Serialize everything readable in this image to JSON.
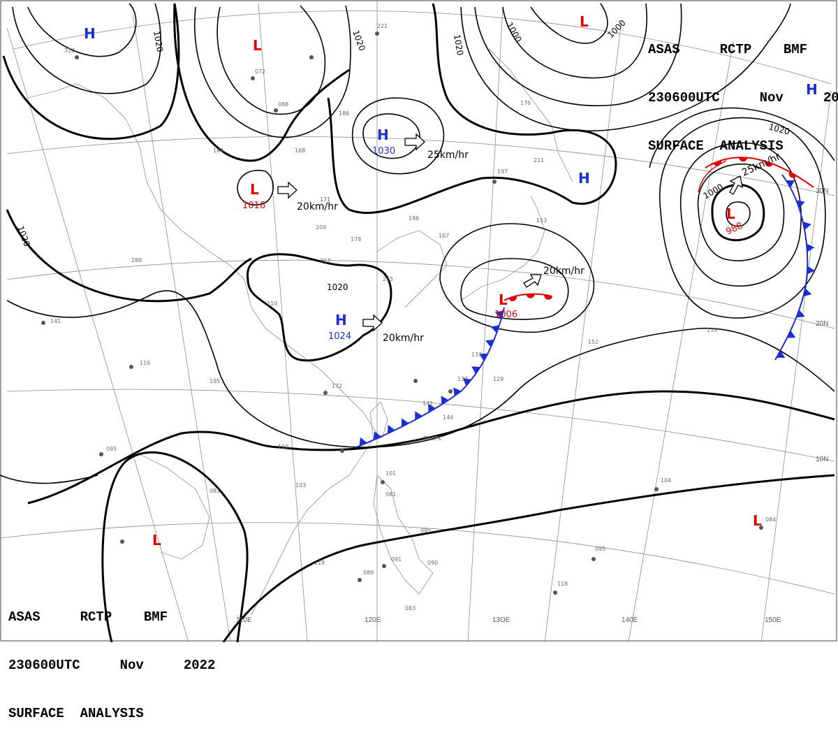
{
  "title": {
    "line1": "ASAS     RCTP    BMF",
    "line2": "230600UTC     Nov     2022",
    "line3": "SURFACE  ANALYSIS"
  },
  "colors": {
    "low": "#e00000",
    "high": "#1a2fd0",
    "cold_front": "#1a2fd0",
    "warm_front": "#e00000",
    "isobar": "#000000",
    "grid": "#8a8a8a"
  },
  "grid_labels": {
    "longitudes": [
      "110E",
      "120E",
      "13OE",
      "140E",
      "150E"
    ],
    "latitudes": [
      "30N",
      "20N",
      "10N"
    ]
  },
  "isobar_labels": [
    "1020",
    "1020",
    "1020",
    "1020",
    "1000",
    "1000",
    "1020",
    "1000",
    "1020"
  ],
  "pressure_centers": [
    {
      "type": "H",
      "value": ""
    },
    {
      "type": "L",
      "value": ""
    },
    {
      "type": "H",
      "value": "1030"
    },
    {
      "type": "L",
      "value": "1016"
    },
    {
      "type": "H",
      "value": "1024"
    },
    {
      "type": "L",
      "value": "1006"
    },
    {
      "type": "L",
      "value": ""
    },
    {
      "type": "H",
      "value": ""
    },
    {
      "type": "H",
      "value": ""
    },
    {
      "type": "L",
      "value": "988"
    },
    {
      "type": "L",
      "value": ""
    },
    {
      "type": "L",
      "value": ""
    }
  ],
  "motions": [
    {
      "text": "25km/hr"
    },
    {
      "text": "20km/hr"
    },
    {
      "text": "20km/hr"
    },
    {
      "text": "20km/hr"
    },
    {
      "text": "25km/hr"
    }
  ],
  "station_samples": [
    "314",
    "072",
    "088",
    "186",
    "221",
    "184",
    "168",
    "171",
    "209",
    "178",
    "186",
    "167",
    "197",
    "211",
    "153",
    "176",
    "288",
    "217",
    "265",
    "141",
    "116",
    "210",
    "195",
    "172",
    "133",
    "137",
    "129",
    "141",
    "144",
    "152",
    "139",
    "095",
    "081",
    "110",
    "103",
    "101",
    "081",
    "095",
    "091",
    "090",
    "118",
    "089",
    "083",
    "118",
    "095",
    "084",
    "104",
    "THCFK"
  ]
}
